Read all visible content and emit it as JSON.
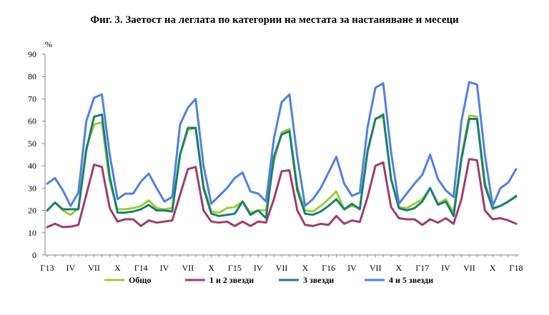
{
  "chart_data": {
    "type": "line",
    "title": "Фиг. 3. Заетост на леглата по категории на местата за настаняване и месеци",
    "ylabel": "%",
    "xlabel": "",
    "ylim": [
      0,
      90
    ],
    "yticks": [
      0,
      10,
      20,
      30,
      40,
      50,
      60,
      70,
      80,
      90
    ],
    "grid": false,
    "legend_position": "bottom",
    "x_tick_labels": [
      "Г13",
      "IV",
      "VII",
      "X",
      "Г14",
      "IV",
      "VII",
      "X",
      "Г15",
      "IV",
      "VII",
      "X",
      "Г16",
      "IV",
      "VII",
      "X",
      "Г17",
      "IV",
      "VII",
      "X",
      "Г18"
    ],
    "series": [
      {
        "name": "Общо",
        "color": "#9acd32",
        "values": [
          20,
          23.5,
          20,
          18,
          21,
          48,
          58.5,
          59.5,
          33,
          20.5,
          20.5,
          21,
          22,
          24.5,
          21,
          20.5,
          21,
          45,
          56,
          57,
          31,
          19.5,
          19,
          21,
          21.5,
          24,
          19,
          20,
          20,
          42,
          55,
          56.5,
          30.5,
          20,
          19.5,
          22,
          25,
          28.5,
          20.5,
          22,
          21,
          46,
          61,
          62,
          34,
          21.5,
          21,
          23,
          25,
          30,
          23,
          25,
          19,
          44,
          62.5,
          62,
          33,
          20.5,
          22,
          24,
          26
        ]
      },
      {
        "name": "1 и 2 звезди",
        "color": "#a23b6e",
        "values": [
          12.5,
          14,
          12.5,
          12.7,
          13.5,
          27,
          40.5,
          39.5,
          21,
          15,
          16,
          16,
          13,
          15.5,
          14.5,
          15,
          15.5,
          27,
          38.5,
          39.5,
          20,
          15,
          14.5,
          15,
          13,
          15,
          13,
          15,
          14.5,
          25,
          37.5,
          38,
          20,
          13.5,
          13,
          14,
          13.5,
          17.5,
          14,
          15.5,
          14.8,
          26,
          40,
          41.5,
          21.5,
          16.5,
          16,
          16,
          13.5,
          16,
          14.5,
          16.5,
          14,
          25,
          43,
          42.5,
          20,
          16,
          16.5,
          15.5,
          14
        ]
      },
      {
        "name": "3 звезди",
        "color": "#1b7f6e",
        "values": [
          20,
          23.5,
          20.5,
          20.5,
          20.5,
          47,
          62,
          63,
          35,
          19,
          19,
          19.5,
          20.5,
          22.5,
          20,
          20,
          19.5,
          45,
          57,
          57,
          30,
          18.5,
          17.5,
          18,
          18.5,
          24,
          18,
          20,
          16.5,
          44,
          54,
          55.5,
          29,
          18.5,
          18,
          19.5,
          22,
          25,
          20.5,
          23,
          20.5,
          47,
          61,
          63,
          34,
          21,
          20,
          21,
          24,
          30,
          22.5,
          24,
          17.5,
          43,
          61,
          61,
          31,
          21,
          22,
          24,
          26.5
        ]
      },
      {
        "name": "4 и 5 звезди",
        "color": "#4f7fe8",
        "values": [
          32,
          34.5,
          29,
          22,
          28,
          60,
          70.5,
          72,
          45,
          25,
          27.5,
          27.5,
          33,
          36.5,
          30,
          24,
          26,
          58.5,
          66,
          70,
          40,
          23,
          26.5,
          30,
          34.5,
          37,
          28.5,
          27.5,
          24,
          52,
          68.5,
          72,
          44,
          22,
          25,
          30,
          37,
          44,
          32,
          26.5,
          28,
          57.5,
          75,
          77,
          46,
          23,
          27.5,
          32,
          36,
          45,
          34,
          29,
          26,
          60,
          77.5,
          76.5,
          45,
          22,
          30,
          32.5,
          38.5
        ]
      }
    ]
  }
}
